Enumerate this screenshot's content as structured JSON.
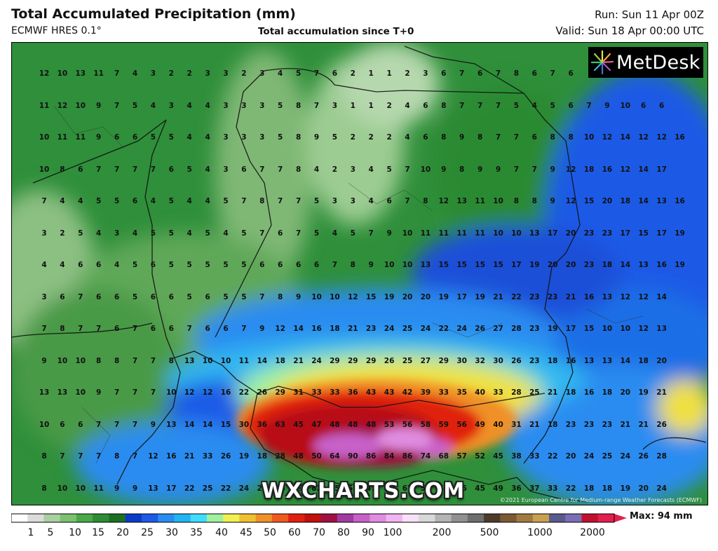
{
  "header": {
    "title": "Total Accumulated Precipitation (mm)",
    "model": "ECMWF HRES 0.1°",
    "subtitle": "Total accumulation since T+0",
    "run": "Run: Sun 11 Apr 00Z",
    "valid": "Valid: Sun 18 Apr 00:00 UTC"
  },
  "map": {
    "logo_text": "MetDesk",
    "logo_icon": "metdesk-burst-icon",
    "watermark": "WXCHARTS.COM",
    "copyright": "©2021 European Centre for Medium-range Weather Forecasts (ECMWF)",
    "grid_rows": [
      "12 10 13 11 7 4 3 2 2 3 3 2 3 4 5 7 6 2 1 1 2 3 6 7 6 7 8 6 7 6",
      "11 12 10 9 7 5 4 3 4 4 3 3 3 5 8 7 3 1 1 2 4 6 8 7 7 7 5 4 5 6 7 9 10 6 6",
      "10 11 11 9 6 6 5 5 4 4 3 3 3 5 8 9 5 2 2 2 4 6 8 9 8 7 7 6 8 8 10 12 14 12 12 16",
      "10 8 6 7 7 7 7 6 5 4 3 6 7 7 8 4 2 3 4 5 7 10 9 8 9 9 7 7 9 12 18 16 12 14 17",
      "7 4 4 5 5 6 4 5 4 4 5 7 8 7 7 5 3 3 4 6 7 8 12 13 11 10 8 8 9 12 15 20 18 14 13 16",
      "3 2 5 4 3 4 5 5 4 5 4 5 7 6 7 5 4 5 7 9 10 11 11 11 11 10 10 13 17 20 23 23 17 15 17 19",
      "4 4 6 6 4 5 6 5 5 5 5 5 6 6 6 6 7 8 9 10 10 13 15 15 15 15 17 19 20 20 23 18 14 13 16 19",
      "3 6 7 6 6 5 6 6 5 6 5 5 7 8 9 10 10 12 15 19 20 20 19 17 19 21 22 23 23 21 16 13 12 12 14",
      "7 8 7 7 6 7 6 6 7 6 6 7 9 12 14 16 18 21 23 24 25 24 22 24 26 27 28 23 19 17 15 10 10 12 13",
      "9 10 10 8 8 7 7 8 13 10 10 11 14 18 21 24 29 29 29 26 25 27 29 30 32 30 26 23 18 16 13 13 14 18 20",
      "13 13 10 9 7 7 7 10 12 12 16 22 26 29 31 33 33 36 43 43 42 39 33 35 40 33 28 25 21 18 16 18 20 19 21",
      "10 6 6 7 7 7 9 13 14 14 15 30 36 63 45 47 48 48 48 53 56 58 59 56 49 40 31 21 18 23 23 23 21 21 26",
      "8 7 7 7 8 7 12 16 21 33 26 19 18 28 48 50 64 90 86 84 86 74 68 57 52 45 38 33 22 20 24 25 24 26 28",
      "8 10 10 11 9 9 13 17 22 25 22 24 25 25 39 82 55 53 47 61 67 54 61 45 45 49 36 37 33 22 18 18 19 20 24"
    ]
  },
  "legend": {
    "max_label": "Max: 94 mm",
    "ticks": [
      "1",
      "5",
      "10",
      "15",
      "20",
      "25",
      "30",
      "35",
      "40",
      "45",
      "50",
      "60",
      "70",
      "80",
      "90",
      "100",
      "200",
      "500",
      "1000",
      "2000"
    ],
    "colors": [
      "#ffffff",
      "#dcdcdc",
      "#a8d0a0",
      "#7cc070",
      "#4aa848",
      "#2e8c34",
      "#1e6e24",
      "#0a3cc8",
      "#1e5ae6",
      "#2a8cf0",
      "#22b4f0",
      "#40dcff",
      "#a0f0a0",
      "#f0f050",
      "#f0c030",
      "#f09028",
      "#f05a20",
      "#e02010",
      "#c01010",
      "#a01040",
      "#a03ca0",
      "#c860c8",
      "#e08ce0",
      "#f0b4f0",
      "#f8e0f8",
      "#d8d8d8",
      "#b4b4b4",
      "#909090",
      "#6e6e6e",
      "#4c3c2c",
      "#7c5a32",
      "#a07a40",
      "#c8a050",
      "#5a5a8c",
      "#7c6eb4",
      "#c01030",
      "#e02050"
    ]
  }
}
